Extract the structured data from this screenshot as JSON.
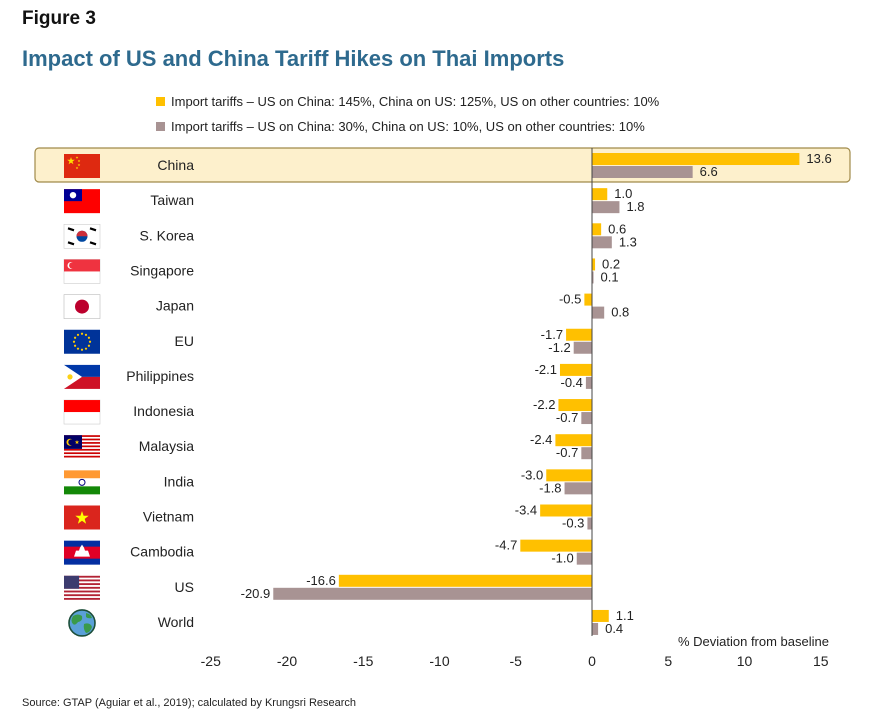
{
  "figure_label": "Figure 3",
  "title": "Impact of US and China Tariff Hikes on Thai Imports",
  "source": "Source: GTAP (Aguiar et al., 2019); calculated by Krungsri Research",
  "chart_data": {
    "type": "bar",
    "orientation": "horizontal",
    "categories": [
      "China",
      "Taiwan",
      "S. Korea",
      "Singapore",
      "Japan",
      "EU",
      "Philippines",
      "Indonesia",
      "Malaysia",
      "India",
      "Vietnam",
      "Cambodia",
      "US",
      "World"
    ],
    "series": [
      {
        "name": "Import tariffs – US on China: 145%, China on US: 125%, US on other countries: 10%",
        "color": "#ffc000",
        "values": [
          13.6,
          1.0,
          0.6,
          0.2,
          -0.5,
          -1.7,
          -2.1,
          -2.2,
          -2.4,
          -3.0,
          -3.4,
          -4.7,
          -16.6,
          1.1
        ],
        "labels": [
          "13.6",
          "1.0",
          "0.6",
          "0.2",
          "-0.5",
          "-1.7",
          "-2.1",
          "-2.2",
          "-2.4",
          "-3.0",
          "-3.4",
          "-4.7",
          "-16.6",
          "1.1"
        ]
      },
      {
        "name": "Import tariffs – US on China: 30%, China on US: 10%, US on other countries: 10%",
        "color": "#a89393",
        "values": [
          6.6,
          1.8,
          1.3,
          0.1,
          0.8,
          -1.2,
          -0.4,
          -0.7,
          -0.7,
          -1.8,
          -0.3,
          -1.0,
          -20.9,
          0.4
        ],
        "labels": [
          "6.6",
          "1.8",
          "1.3",
          "0.1",
          "0.8",
          "-1.2",
          "-0.4",
          "-0.7",
          "-0.7",
          "-1.8",
          "-0.3",
          "-1.0",
          "-20.9",
          "0.4"
        ]
      }
    ],
    "xlabel": "% Deviation from baseline",
    "xlim": [
      -25,
      15
    ],
    "xticks": [
      "-25",
      "-20",
      "-15",
      "-10",
      "-5",
      "0",
      "5",
      "10",
      "15"
    ],
    "highlighted_category": "China",
    "highlight_color": "#fdf0cc",
    "flag_icons": [
      "china-flag-icon",
      "taiwan-flag-icon",
      "south-korea-flag-icon",
      "singapore-flag-icon",
      "japan-flag-icon",
      "eu-flag-icon",
      "philippines-flag-icon",
      "indonesia-flag-icon",
      "malaysia-flag-icon",
      "india-flag-icon",
      "vietnam-flag-icon",
      "cambodia-flag-icon",
      "us-flag-icon",
      "globe-icon"
    ]
  }
}
